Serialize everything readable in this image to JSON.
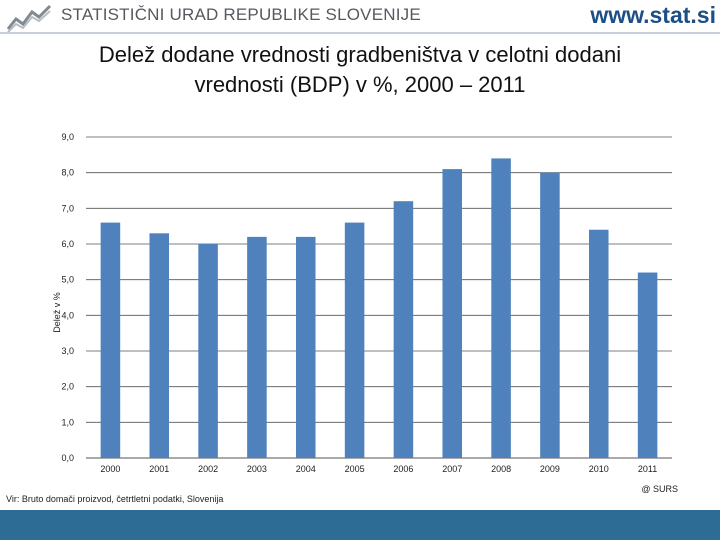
{
  "header": {
    "org_name": "STATISTIČNI URAD REPUBLIKE SLOVENIJE",
    "website": "www.stat.si",
    "logo_icon": "surs-logo-icon"
  },
  "colors": {
    "bar": "#4f81bd",
    "band": "#2c6c95",
    "website": "#1d4f86",
    "gridline": "#555555"
  },
  "chart_data": {
    "type": "bar",
    "title_lines": [
      "Delež dodane vrednosti gradbeništva v celotni dodani",
      "vrednosti (BDP) v %, 2000 – 2011"
    ],
    "xlabel": "",
    "ylabel": "Delež v %",
    "categories": [
      "2000",
      "2001",
      "2002",
      "2003",
      "2004",
      "2005",
      "2006",
      "2007",
      "2008",
      "2009",
      "2010",
      "2011"
    ],
    "values": [
      6.6,
      6.3,
      6.0,
      6.2,
      6.2,
      6.6,
      7.2,
      8.1,
      8.4,
      8.0,
      6.4,
      5.2
    ],
    "ylim": [
      0,
      9
    ],
    "yticks": [
      "0,0",
      "1,0",
      "2,0",
      "3,0",
      "4,0",
      "5,0",
      "6,0",
      "7,0",
      "8,0",
      "9,0"
    ],
    "grid": true,
    "legend": "none"
  },
  "footer": {
    "source": "Vir: Bruto domači proizvod, četrtletni podatki, Slovenija",
    "copyright": "@ SURS"
  }
}
